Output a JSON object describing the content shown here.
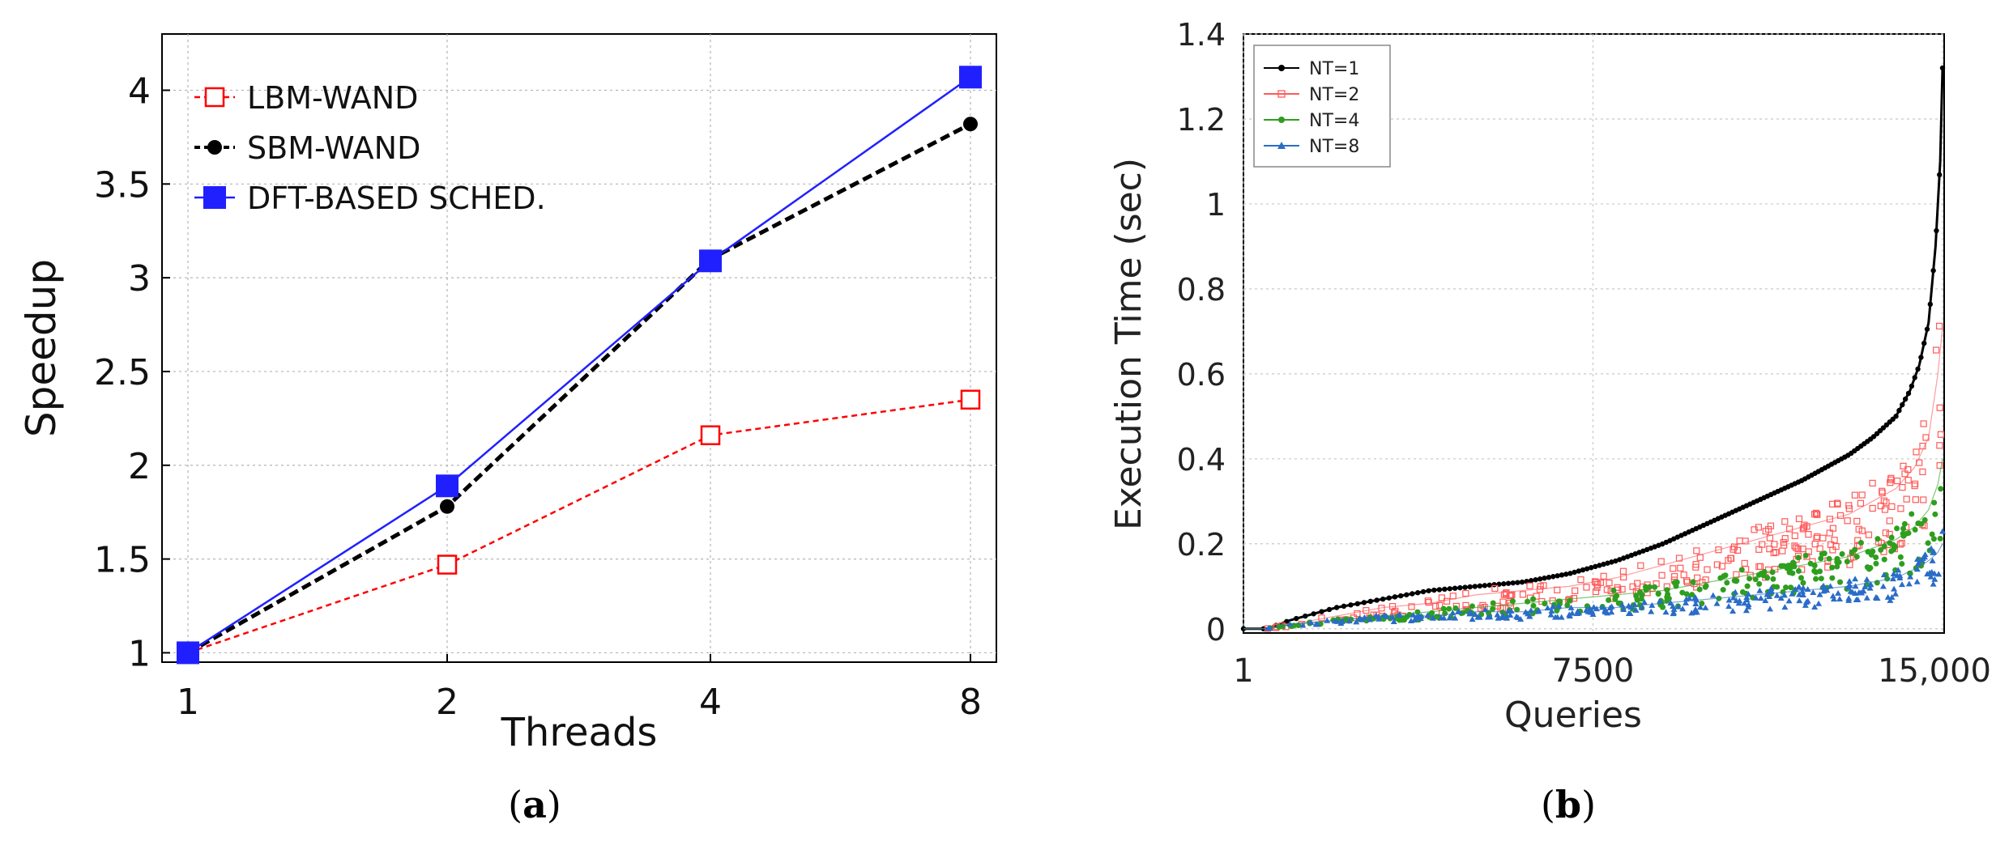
{
  "chart_data": [
    {
      "type": "line",
      "caption": "(a)",
      "caption_bold": "a",
      "xlabel": "Threads",
      "ylabel": "Speedup",
      "x_ticks": [
        "1",
        "2",
        "4",
        "8"
      ],
      "y_ticks": [
        "1",
        "1.5",
        "2",
        "2.5",
        "3",
        "3.5",
        "4"
      ],
      "ylim": [
        0.95,
        4.3
      ],
      "grid": true,
      "legend": "top-left",
      "series": [
        {
          "name": "LBM-WAND",
          "color": "#ff0000",
          "marker": "open-square",
          "style": "dashed",
          "values": [
            1.0,
            1.47,
            2.16,
            2.35
          ]
        },
        {
          "name": "SBM-WAND",
          "color": "#000000",
          "marker": "circle",
          "style": "dashed",
          "values": [
            1.0,
            1.78,
            3.1,
            3.82
          ]
        },
        {
          "name": "DFT-BASED SCHED.",
          "color": "#2020ff",
          "marker": "filled-square",
          "style": "solid",
          "values": [
            1.0,
            1.89,
            3.09,
            4.07
          ]
        }
      ]
    },
    {
      "type": "scatter",
      "caption": "(b)",
      "caption_bold": "b",
      "xlabel": "Queries",
      "ylabel": "Execution Time (sec)",
      "x_ticks": [
        "1",
        "7500",
        "15,000"
      ],
      "y_ticks": [
        "0",
        "0.2",
        "0.4",
        "0.6",
        "0.8",
        "1",
        "1.2",
        "1.4"
      ],
      "xlim": [
        1,
        15000
      ],
      "ylim": [
        -0.01,
        1.4
      ],
      "grid": true,
      "legend": "top-left",
      "series": [
        {
          "name": "NT=1",
          "color": "#000000",
          "x": [
            1,
            500,
            1000,
            2000,
            3000,
            4000,
            5000,
            6000,
            7000,
            8000,
            9000,
            10000,
            11000,
            12000,
            13000,
            13500,
            14000,
            14300,
            14500,
            14700,
            14850,
            14950,
            15000
          ],
          "values": [
            0.0,
            0.0,
            0.02,
            0.05,
            0.07,
            0.09,
            0.1,
            0.11,
            0.13,
            0.16,
            0.2,
            0.25,
            0.3,
            0.35,
            0.41,
            0.45,
            0.5,
            0.56,
            0.62,
            0.72,
            0.9,
            1.1,
            1.32
          ]
        },
        {
          "name": "NT=2",
          "color": "#ff5a5a",
          "x": [
            1,
            500,
            1000,
            2000,
            3000,
            4000,
            5000,
            6000,
            7000,
            8000,
            9000,
            10000,
            11000,
            12000,
            13000,
            13500,
            14000,
            14400,
            14700,
            14900,
            15000
          ],
          "values": [
            0.0,
            0.0,
            0.01,
            0.03,
            0.05,
            0.06,
            0.08,
            0.09,
            0.1,
            0.12,
            0.15,
            0.18,
            0.21,
            0.24,
            0.27,
            0.3,
            0.33,
            0.38,
            0.45,
            0.6,
            0.71
          ]
        },
        {
          "name": "NT=4",
          "color": "#2e9e1e",
          "x": [
            1,
            500,
            1000,
            2000,
            3000,
            4000,
            5000,
            6000,
            7000,
            8000,
            9000,
            10000,
            11000,
            12000,
            13000,
            13500,
            14000,
            14400,
            14700,
            14900,
            15000
          ],
          "values": [
            0.0,
            0.0,
            0.01,
            0.02,
            0.03,
            0.04,
            0.05,
            0.06,
            0.07,
            0.08,
            0.09,
            0.11,
            0.13,
            0.15,
            0.17,
            0.19,
            0.21,
            0.24,
            0.28,
            0.34,
            0.4
          ]
        },
        {
          "name": "NT=8",
          "color": "#2a6cc8",
          "x": [
            1,
            500,
            1000,
            2000,
            3000,
            4000,
            5000,
            6000,
            7000,
            8000,
            9000,
            10000,
            11000,
            12000,
            13000,
            13500,
            14000,
            14400,
            14700,
            14900,
            15000
          ],
          "values": [
            0.0,
            0.0,
            0.01,
            0.02,
            0.03,
            0.03,
            0.04,
            0.04,
            0.05,
            0.05,
            0.06,
            0.07,
            0.08,
            0.09,
            0.1,
            0.11,
            0.12,
            0.14,
            0.16,
            0.18,
            0.2
          ]
        }
      ]
    }
  ]
}
